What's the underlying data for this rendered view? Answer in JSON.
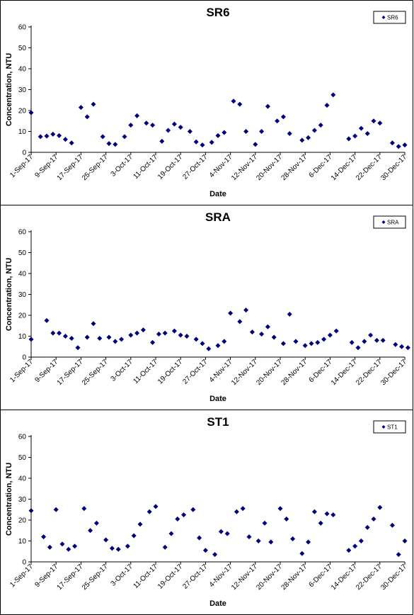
{
  "shared": {
    "xlabel": "Date",
    "ylabel": "Concentration, NTU",
    "x_tick_labels": [
      "1-Sep-17",
      "9-Sep-17",
      "17-Sep-17",
      "25-Sep-17",
      "3-Oct-17",
      "11-Oct-17",
      "19-Oct-17",
      "27-Oct-17",
      "4-Nov-17",
      "12-Nov-17",
      "20-Nov-17",
      "28-Nov-17",
      "6-Dec-17",
      "14-Dec-17",
      "22-Dec-17",
      "30-Dec-17"
    ],
    "y_ticks": [
      0,
      10,
      20,
      30,
      40,
      50,
      60
    ],
    "marker_color": "#00007F"
  },
  "chart_data": [
    {
      "type": "scatter",
      "title": "SR6",
      "legend": "SR6",
      "legend_position": "top-right",
      "xlabel": "Date",
      "ylabel": "Concentration, NTU",
      "ylim": [
        0,
        60
      ],
      "xlim": [
        "2017-09-01",
        "2017-12-30"
      ],
      "points": [
        [
          "2017-09-01",
          19
        ],
        [
          "2017-09-04",
          7.5
        ],
        [
          "2017-09-06",
          7.8
        ],
        [
          "2017-09-08",
          8.7
        ],
        [
          "2017-09-10",
          8
        ],
        [
          "2017-09-12",
          6.2
        ],
        [
          "2017-09-14",
          4.5
        ],
        [
          "2017-09-17",
          21.5
        ],
        [
          "2017-09-19",
          17
        ],
        [
          "2017-09-21",
          23
        ],
        [
          "2017-09-24",
          7.5
        ],
        [
          "2017-09-26",
          4.2
        ],
        [
          "2017-09-28",
          3.8
        ],
        [
          "2017-10-01",
          7.5
        ],
        [
          "2017-10-03",
          13
        ],
        [
          "2017-10-05",
          17.5
        ],
        [
          "2017-10-08",
          14
        ],
        [
          "2017-10-10",
          13
        ],
        [
          "2017-10-13",
          5.3
        ],
        [
          "2017-10-15",
          10.5
        ],
        [
          "2017-10-17",
          13.5
        ],
        [
          "2017-10-19",
          12
        ],
        [
          "2017-10-22",
          10
        ],
        [
          "2017-10-24",
          5
        ],
        [
          "2017-10-26",
          3.5
        ],
        [
          "2017-10-29",
          4.8
        ],
        [
          "2017-10-31",
          8
        ],
        [
          "2017-11-02",
          9.5
        ],
        [
          "2017-11-05",
          24.5
        ],
        [
          "2017-11-07",
          23
        ],
        [
          "2017-11-09",
          10
        ],
        [
          "2017-11-12",
          3.8
        ],
        [
          "2017-11-14",
          10
        ],
        [
          "2017-11-16",
          22
        ],
        [
          "2017-11-19",
          15
        ],
        [
          "2017-11-21",
          17
        ],
        [
          "2017-11-23",
          9
        ],
        [
          "2017-11-27",
          5.8
        ],
        [
          "2017-11-29",
          7
        ],
        [
          "2017-12-01",
          10.5
        ],
        [
          "2017-12-03",
          13
        ],
        [
          "2017-12-05",
          22.5
        ],
        [
          "2017-12-07",
          27.5
        ],
        [
          "2017-12-12",
          6.5
        ],
        [
          "2017-12-14",
          7.8
        ],
        [
          "2017-12-16",
          11.5
        ],
        [
          "2017-12-18",
          9
        ],
        [
          "2017-12-20",
          15
        ],
        [
          "2017-12-22",
          14
        ],
        [
          "2017-12-26",
          4.5
        ],
        [
          "2017-12-28",
          2.8
        ],
        [
          "2017-12-30",
          3.5
        ]
      ]
    },
    {
      "type": "scatter",
      "title": "SRA",
      "legend": "SRA",
      "legend_position": "top-right",
      "xlabel": "Date",
      "ylabel": "Concentration, NTU",
      "ylim": [
        0,
        60
      ],
      "xlim": [
        "2017-09-01",
        "2017-12-30"
      ],
      "points": [
        [
          "2017-09-01",
          8.5
        ],
        [
          "2017-09-06",
          17.5
        ],
        [
          "2017-09-08",
          11.5
        ],
        [
          "2017-09-10",
          11.5
        ],
        [
          "2017-09-12",
          10
        ],
        [
          "2017-09-14",
          9
        ],
        [
          "2017-09-16",
          4.5
        ],
        [
          "2017-09-19",
          9.5
        ],
        [
          "2017-09-21",
          16
        ],
        [
          "2017-09-23",
          9
        ],
        [
          "2017-09-26",
          9.5
        ],
        [
          "2017-09-28",
          7.5
        ],
        [
          "2017-09-30",
          8.5
        ],
        [
          "2017-10-03",
          10.5
        ],
        [
          "2017-10-05",
          11.5
        ],
        [
          "2017-10-07",
          13
        ],
        [
          "2017-10-10",
          7
        ],
        [
          "2017-10-12",
          11
        ],
        [
          "2017-10-14",
          11.5
        ],
        [
          "2017-10-17",
          12.5
        ],
        [
          "2017-10-19",
          10.5
        ],
        [
          "2017-10-21",
          10
        ],
        [
          "2017-10-24",
          8.5
        ],
        [
          "2017-10-26",
          6.5
        ],
        [
          "2017-10-28",
          4
        ],
        [
          "2017-10-31",
          5.5
        ],
        [
          "2017-11-02",
          7.5
        ],
        [
          "2017-11-04",
          21
        ],
        [
          "2017-11-07",
          17
        ],
        [
          "2017-11-09",
          22.5
        ],
        [
          "2017-11-11",
          12
        ],
        [
          "2017-11-14",
          11
        ],
        [
          "2017-11-16",
          14.5
        ],
        [
          "2017-11-18",
          9.5
        ],
        [
          "2017-11-21",
          6.5
        ],
        [
          "2017-11-23",
          20.5
        ],
        [
          "2017-11-25",
          7.5
        ],
        [
          "2017-11-28",
          5.5
        ],
        [
          "2017-11-30",
          6.5
        ],
        [
          "2017-12-02",
          7
        ],
        [
          "2017-12-04",
          8.5
        ],
        [
          "2017-12-06",
          10.5
        ],
        [
          "2017-12-08",
          12.5
        ],
        [
          "2017-12-13",
          7
        ],
        [
          "2017-12-15",
          4.5
        ],
        [
          "2017-12-17",
          7.5
        ],
        [
          "2017-12-19",
          10.5
        ],
        [
          "2017-12-21",
          8
        ],
        [
          "2017-12-23",
          8
        ],
        [
          "2017-12-27",
          6
        ],
        [
          "2017-12-29",
          5
        ],
        [
          "2017-12-31",
          4.5
        ]
      ]
    },
    {
      "type": "scatter",
      "title": "ST1",
      "legend": "ST1",
      "legend_position": "top-right",
      "xlabel": "Date",
      "ylabel": "Concentration, NTU",
      "ylim": [
        0,
        60
      ],
      "xlim": [
        "2017-09-01",
        "2017-12-30"
      ],
      "points": [
        [
          "2017-09-01",
          24.5
        ],
        [
          "2017-09-05",
          12
        ],
        [
          "2017-09-07",
          7
        ],
        [
          "2017-09-09",
          25
        ],
        [
          "2017-09-11",
          8.5
        ],
        [
          "2017-09-13",
          6
        ],
        [
          "2017-09-15",
          7.5
        ],
        [
          "2017-09-18",
          25.5
        ],
        [
          "2017-09-20",
          15
        ],
        [
          "2017-09-22",
          18.5
        ],
        [
          "2017-09-25",
          10.5
        ],
        [
          "2017-09-27",
          6.5
        ],
        [
          "2017-09-29",
          6
        ],
        [
          "2017-10-02",
          7.5
        ],
        [
          "2017-10-04",
          12.5
        ],
        [
          "2017-10-06",
          18
        ],
        [
          "2017-10-09",
          24
        ],
        [
          "2017-10-11",
          26.5
        ],
        [
          "2017-10-14",
          7
        ],
        [
          "2017-10-16",
          13.5
        ],
        [
          "2017-10-18",
          20.5
        ],
        [
          "2017-10-20",
          22.5
        ],
        [
          "2017-10-23",
          25
        ],
        [
          "2017-10-25",
          11.5
        ],
        [
          "2017-10-27",
          5.5
        ],
        [
          "2017-10-30",
          3.5
        ],
        [
          "2017-11-01",
          14.5
        ],
        [
          "2017-11-03",
          13.5
        ],
        [
          "2017-11-06",
          24
        ],
        [
          "2017-11-08",
          25.5
        ],
        [
          "2017-11-10",
          12
        ],
        [
          "2017-11-13",
          10
        ],
        [
          "2017-11-15",
          18.5
        ],
        [
          "2017-11-17",
          9.5
        ],
        [
          "2017-11-20",
          25.5
        ],
        [
          "2017-11-22",
          20.5
        ],
        [
          "2017-11-24",
          11
        ],
        [
          "2017-11-27",
          4
        ],
        [
          "2017-11-29",
          9.5
        ],
        [
          "2017-12-01",
          24
        ],
        [
          "2017-12-03",
          18.5
        ],
        [
          "2017-12-05",
          23
        ],
        [
          "2017-12-07",
          22.5
        ],
        [
          "2017-12-12",
          5.5
        ],
        [
          "2017-12-14",
          7.5
        ],
        [
          "2017-12-16",
          10
        ],
        [
          "2017-12-18",
          16.5
        ],
        [
          "2017-12-20",
          20.5
        ],
        [
          "2017-12-22",
          26
        ],
        [
          "2017-12-26",
          17.5
        ],
        [
          "2017-12-28",
          3.5
        ],
        [
          "2017-12-30",
          10
        ]
      ]
    }
  ]
}
